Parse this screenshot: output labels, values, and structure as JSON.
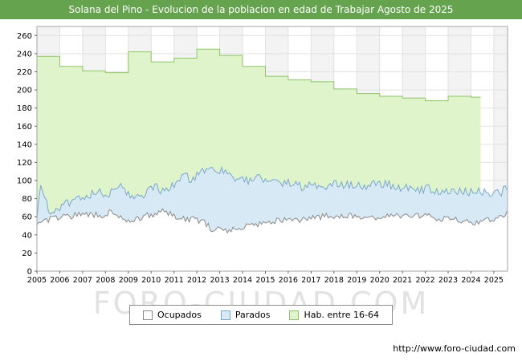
{
  "chart_data": {
    "type": "area",
    "title": "Solana del Pino - Evolucion de la poblacion en edad de Trabajar Agosto de 2025",
    "xlim": [
      2005,
      2025.6
    ],
    "ylim": [
      0,
      270
    ],
    "x_ticks": [
      2005,
      2006,
      2007,
      2008,
      2009,
      2010,
      2011,
      2012,
      2013,
      2014,
      2015,
      2016,
      2017,
      2018,
      2019,
      2020,
      2021,
      2022,
      2023,
      2024,
      2025
    ],
    "y_ticks": [
      0,
      20,
      40,
      60,
      80,
      100,
      120,
      140,
      160,
      180,
      200,
      220,
      240,
      260
    ],
    "grid": true,
    "colors": {
      "header_bg": "#66A34E",
      "grid": "#E2E2E2",
      "bands": [
        "#F3F3F3",
        "#FFFFFF"
      ],
      "border": "#A6A6A6",
      "tick_text": "#000000"
    },
    "series": [
      {
        "name": "Hab. entre 16-64",
        "style": "step",
        "fill": "#DFF4CB",
        "line": "#8FC468",
        "end": 2024.42,
        "anchors": [
          [
            2005,
            237
          ],
          [
            2006,
            226
          ],
          [
            2007,
            221
          ],
          [
            2008,
            219
          ],
          [
            2009,
            242
          ],
          [
            2010,
            231
          ],
          [
            2011,
            235
          ],
          [
            2012,
            245
          ],
          [
            2013,
            238
          ],
          [
            2014,
            226
          ],
          [
            2015,
            215
          ],
          [
            2016,
            211
          ],
          [
            2017,
            209
          ],
          [
            2018,
            201
          ],
          [
            2019,
            196
          ],
          [
            2020,
            193
          ],
          [
            2021,
            191
          ],
          [
            2022,
            188
          ],
          [
            2023,
            193
          ],
          [
            2024,
            192
          ]
        ]
      },
      {
        "name": "Parados",
        "style": "jagged",
        "fill": "#D8E9F6",
        "line": "#7BA7CB",
        "amp": 5,
        "seed": 11,
        "anchors": [
          [
            2005.0,
            55
          ],
          [
            2005.17,
            97
          ],
          [
            2005.5,
            66
          ],
          [
            2005.9,
            68
          ],
          [
            2006.3,
            74
          ],
          [
            2006.8,
            78
          ],
          [
            2007.2,
            82
          ],
          [
            2007.6,
            88
          ],
          [
            2007.9,
            84
          ],
          [
            2008.3,
            88
          ],
          [
            2008.7,
            94
          ],
          [
            2009.0,
            86
          ],
          [
            2009.4,
            80
          ],
          [
            2009.8,
            88
          ],
          [
            2010.2,
            92
          ],
          [
            2010.6,
            88
          ],
          [
            2011.0,
            96
          ],
          [
            2011.4,
            104
          ],
          [
            2011.8,
            102
          ],
          [
            2012.1,
            108
          ],
          [
            2012.4,
            114
          ],
          [
            2012.8,
            108
          ],
          [
            2013.1,
            112
          ],
          [
            2013.5,
            102
          ],
          [
            2013.9,
            106
          ],
          [
            2014.3,
            99
          ],
          [
            2014.7,
            103
          ],
          [
            2015.2,
            101
          ],
          [
            2015.7,
            98
          ],
          [
            2016.2,
            96
          ],
          [
            2016.7,
            93
          ],
          [
            2017.2,
            95
          ],
          [
            2017.7,
            93
          ],
          [
            2018.2,
            96
          ],
          [
            2018.7,
            94
          ],
          [
            2019.2,
            93
          ],
          [
            2019.7,
            95
          ],
          [
            2020.2,
            96
          ],
          [
            2020.7,
            94
          ],
          [
            2021.2,
            91
          ],
          [
            2021.7,
            89
          ],
          [
            2022.2,
            91
          ],
          [
            2022.7,
            88
          ],
          [
            2023.2,
            90
          ],
          [
            2023.7,
            87
          ],
          [
            2024.2,
            89
          ],
          [
            2024.7,
            86
          ],
          [
            2025.0,
            88
          ],
          [
            2025.3,
            86
          ],
          [
            2025.58,
            93
          ]
        ]
      },
      {
        "name": "Ocupados",
        "style": "jagged",
        "fill": "#FFFFFF",
        "line": "#8A8A8A",
        "amp": 3.5,
        "seed": 4,
        "anchors": [
          [
            2005.0,
            52
          ],
          [
            2005.4,
            56
          ],
          [
            2005.8,
            58
          ],
          [
            2006.3,
            60
          ],
          [
            2006.8,
            62
          ],
          [
            2007.3,
            63
          ],
          [
            2007.8,
            61
          ],
          [
            2008.2,
            65
          ],
          [
            2008.6,
            62
          ],
          [
            2008.95,
            55
          ],
          [
            2009.3,
            58
          ],
          [
            2009.7,
            60
          ],
          [
            2010.2,
            64
          ],
          [
            2010.6,
            66
          ],
          [
            2011.0,
            60
          ],
          [
            2011.5,
            58
          ],
          [
            2011.9,
            57
          ],
          [
            2012.3,
            55
          ],
          [
            2012.75,
            43
          ],
          [
            2012.95,
            46
          ],
          [
            2013.3,
            45
          ],
          [
            2013.7,
            48
          ],
          [
            2014.2,
            50
          ],
          [
            2014.7,
            52
          ],
          [
            2015.2,
            54
          ],
          [
            2015.7,
            56
          ],
          [
            2016.2,
            55
          ],
          [
            2016.7,
            57
          ],
          [
            2017.2,
            59
          ],
          [
            2017.7,
            61
          ],
          [
            2018.2,
            60
          ],
          [
            2018.7,
            62
          ],
          [
            2019.2,
            60
          ],
          [
            2019.7,
            59
          ],
          [
            2020.2,
            61
          ],
          [
            2020.7,
            60
          ],
          [
            2021.2,
            63
          ],
          [
            2021.7,
            61
          ],
          [
            2022.2,
            60
          ],
          [
            2022.7,
            58
          ],
          [
            2023.2,
            57
          ],
          [
            2023.7,
            55
          ],
          [
            2024.2,
            54
          ],
          [
            2024.7,
            56
          ],
          [
            2025.0,
            58
          ],
          [
            2025.3,
            61
          ],
          [
            2025.58,
            64
          ]
        ]
      }
    ],
    "legend": {
      "position": "bottom-center",
      "items": [
        {
          "label": "Ocupados",
          "series_index": 2
        },
        {
          "label": "Parados",
          "series_index": 1
        },
        {
          "label": "Hab. entre 16-64",
          "series_index": 0
        }
      ]
    }
  },
  "watermark": {
    "text": "FORO-CIUDAD.COM"
  },
  "footer": {
    "url": "http://www.foro-ciudad.com"
  }
}
